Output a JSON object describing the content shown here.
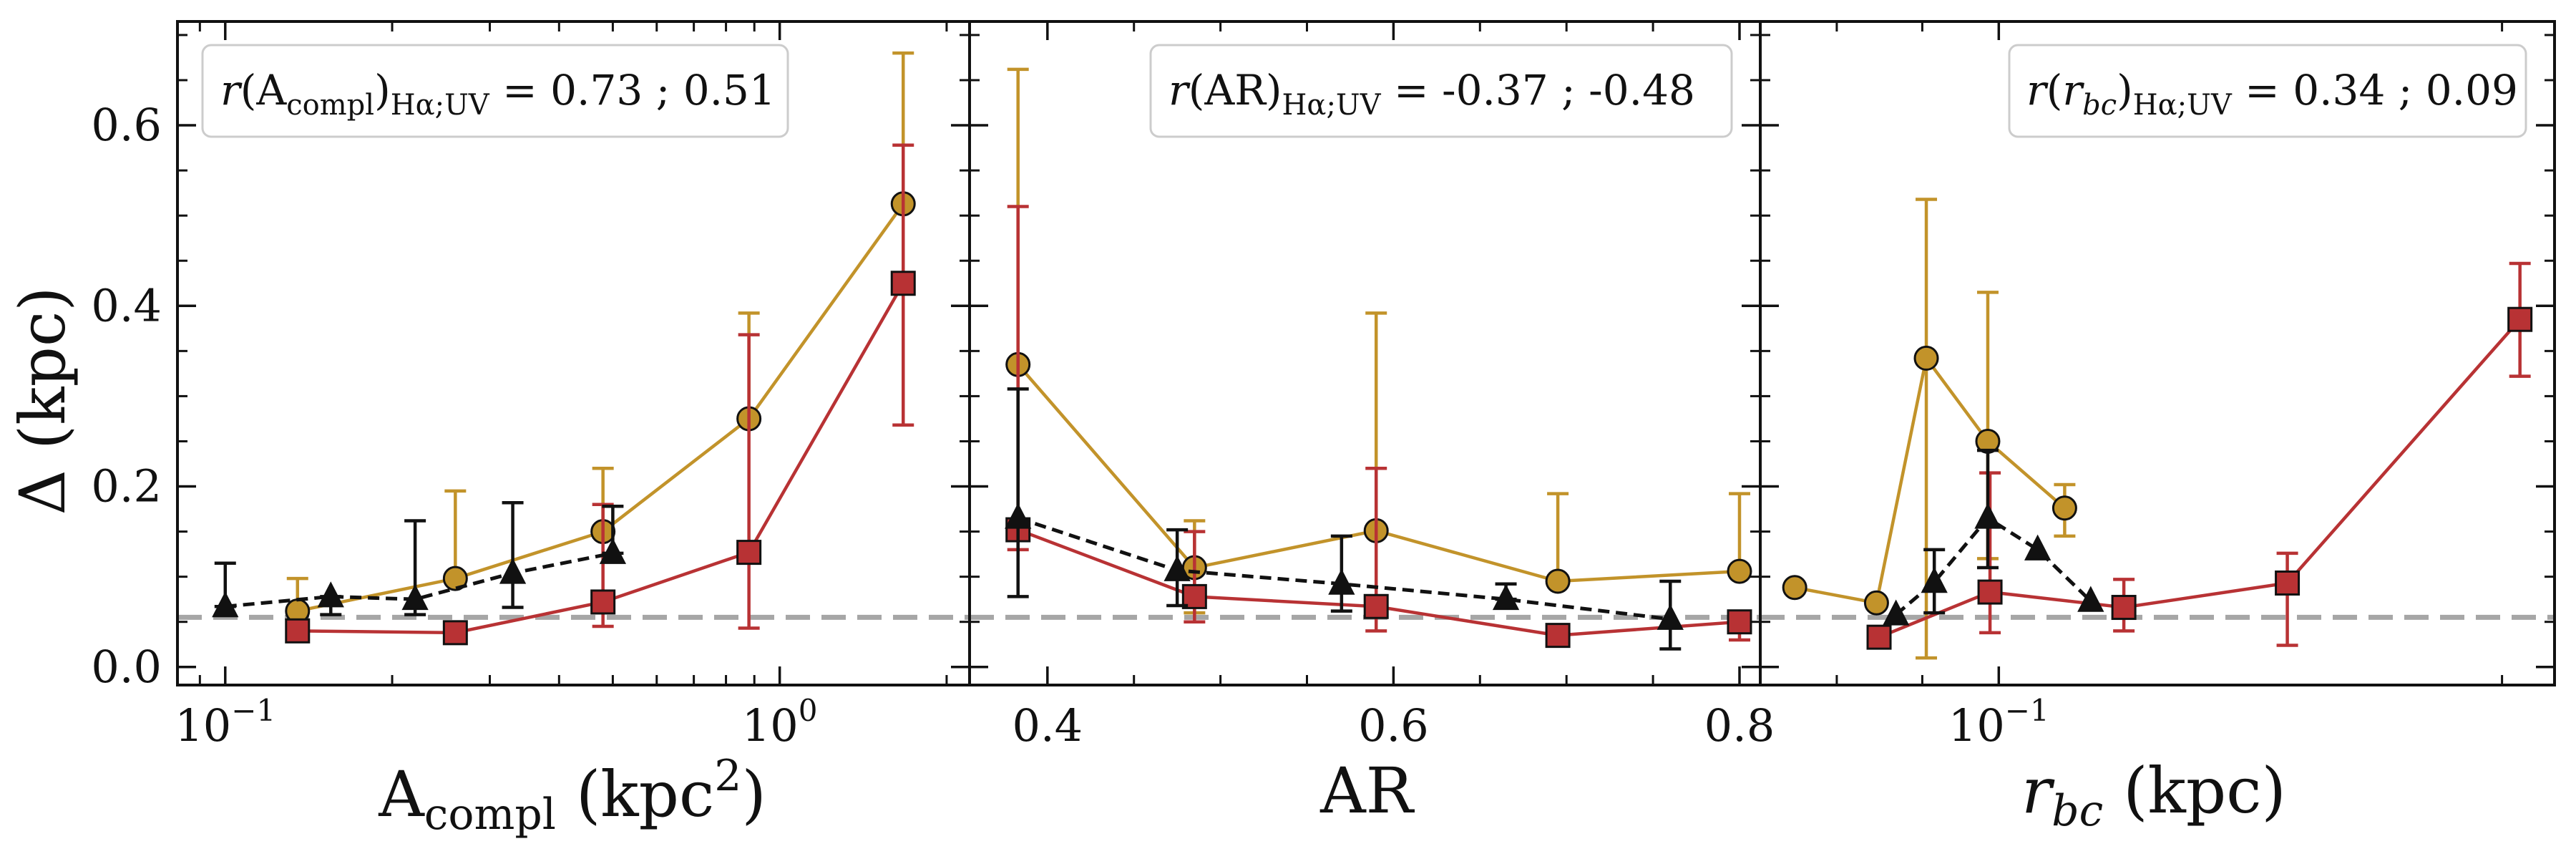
{
  "figure": {
    "ylabel": "Δ (kpc)",
    "y_ticks": [
      0.0,
      0.2,
      0.4,
      0.6
    ],
    "y_tick_labels": [
      "0.0",
      "0.2",
      "0.4",
      "0.6"
    ],
    "ylim": [
      -0.02,
      0.715
    ],
    "reference_line_y": 0.055
  },
  "colors": {
    "halpha": "#c2932a",
    "uv": "#b83234",
    "combined": "#111111",
    "reference": "#a6a6a6",
    "legend_border": "#cccccc"
  },
  "chart_data": [
    {
      "type": "line",
      "xscale": "log",
      "xlim": [
        0.082,
        2.2
      ],
      "xlabel_main": "A",
      "xlabel_sub": "compl",
      "xlabel_tail": " (kpc",
      "xlabel_sup": "2",
      "xlabel_end": ")",
      "x_ticks": [
        0.1,
        1.0
      ],
      "x_tick_labels": [
        {
          "base": "10",
          "exp": "−1"
        },
        {
          "base": "10",
          "exp": "0"
        }
      ],
      "annotation": {
        "pre": "r",
        "mid": "(A",
        "sub1": "compl",
        "close": ")",
        "sub2": "Hα;UV",
        "tail": " = 0.73 ; 0.51"
      },
      "legend_position": "top-left",
      "series": [
        {
          "name": "halpha",
          "marker": "circle",
          "style": "solid",
          "x": [
            0.135,
            0.26,
            0.48,
            0.88,
            1.67
          ],
          "y": [
            0.062,
            0.098,
            0.15,
            0.275,
            0.513
          ],
          "err_low": [
            0.062,
            0.098,
            0.15,
            0.275,
            0.513
          ],
          "err_high": [
            0.098,
            0.195,
            0.22,
            0.392,
            0.68
          ]
        },
        {
          "name": "uv",
          "marker": "square",
          "style": "solid",
          "x": [
            0.135,
            0.26,
            0.48,
            0.88,
            1.67
          ],
          "y": [
            0.04,
            0.038,
            0.072,
            0.127,
            0.425
          ],
          "err_low": [
            0.04,
            0.038,
            0.045,
            0.043,
            0.268
          ],
          "err_high": [
            0.04,
            0.038,
            0.18,
            0.368,
            0.578
          ]
        },
        {
          "name": "combined",
          "marker": "triangle",
          "style": "dashed",
          "x": [
            0.1,
            0.155,
            0.22,
            0.33,
            0.5
          ],
          "y": [
            0.067,
            0.078,
            0.075,
            0.104,
            0.126
          ],
          "err_low": [
            0.067,
            0.058,
            0.058,
            0.066,
            0.126
          ],
          "err_high": [
            0.115,
            0.078,
            0.162,
            0.182,
            0.178
          ]
        }
      ]
    },
    {
      "type": "line",
      "xscale": "linear",
      "xlim": [
        0.355,
        0.812
      ],
      "xlabel_main": "AR",
      "x_ticks": [
        0.4,
        0.6,
        0.8
      ],
      "x_tick_labels": [
        "0.4",
        "0.6",
        "0.8"
      ],
      "annotation": {
        "pre": "r",
        "mid": "(AR)",
        "sub2": "Hα;UV",
        "tail": " = -0.37 ; -0.48"
      },
      "legend_position": "top-right",
      "series": [
        {
          "name": "halpha",
          "marker": "circle",
          "style": "solid",
          "x": [
            0.383,
            0.485,
            0.59,
            0.695,
            0.8
          ],
          "y": [
            0.335,
            0.11,
            0.151,
            0.095,
            0.106
          ],
          "err_low": [
            0.15,
            0.06,
            0.151,
            0.095,
            0.106
          ],
          "err_high": [
            0.662,
            0.162,
            0.392,
            0.192,
            0.192
          ]
        },
        {
          "name": "uv",
          "marker": "square",
          "style": "solid",
          "x": [
            0.383,
            0.485,
            0.59,
            0.695,
            0.8
          ],
          "y": [
            0.152,
            0.078,
            0.067,
            0.035,
            0.05
          ],
          "err_low": [
            0.13,
            0.05,
            0.04,
            0.035,
            0.03
          ],
          "err_high": [
            0.51,
            0.15,
            0.22,
            0.035,
            0.05
          ]
        },
        {
          "name": "combined",
          "marker": "triangle",
          "style": "dashed",
          "x": [
            0.383,
            0.475,
            0.57,
            0.665,
            0.76
          ],
          "y": [
            0.165,
            0.107,
            0.092,
            0.075,
            0.053
          ],
          "err_low": [
            0.078,
            0.068,
            0.062,
            0.075,
            0.02
          ],
          "err_high": [
            0.308,
            0.152,
            0.145,
            0.092,
            0.095
          ]
        }
      ]
    },
    {
      "type": "line",
      "xscale": "log",
      "xlim": [
        0.072,
        0.215
      ],
      "xlabel_main": "r",
      "xlabel_sub": "bc",
      "xlabel_tail": " (kpc)",
      "x_ticks": [
        0.1
      ],
      "x_tick_labels": [
        {
          "base": "10",
          "exp": "−1"
        }
      ],
      "annotation": {
        "pre": "r",
        "mid": "(",
        "italic_mid": "r",
        "italic_sub": "bc",
        "close": ")",
        "sub2": "Hα;UV",
        "tail": " = 0.34 ; 0.09"
      },
      "legend_position": "top-right",
      "series": [
        {
          "name": "halpha",
          "marker": "circle",
          "style": "solid",
          "x": [
            0.0755,
            0.0845,
            0.0905,
            0.0985,
            0.1095
          ],
          "y": [
            0.088,
            0.071,
            0.342,
            0.25,
            0.176
          ],
          "err_low": [
            0.088,
            0.071,
            0.01,
            0.12,
            0.145
          ],
          "err_high": [
            0.088,
            0.071,
            0.518,
            0.415,
            0.202
          ]
        },
        {
          "name": "uv",
          "marker": "square",
          "style": "solid",
          "x": [
            0.0848,
            0.0988,
            0.1188,
            0.1488,
            0.205
          ],
          "y": [
            0.033,
            0.083,
            0.066,
            0.093,
            0.385
          ],
          "err_low": [
            0.033,
            0.038,
            0.04,
            0.024,
            0.322
          ],
          "err_high": [
            0.033,
            0.215,
            0.097,
            0.126,
            0.447
          ]
        },
        {
          "name": "combined",
          "marker": "triangle",
          "style": "dashed",
          "x": [
            0.0868,
            0.0915,
            0.0985,
            0.1055,
            0.1135
          ],
          "y": [
            0.058,
            0.094,
            0.165,
            0.13,
            0.073
          ],
          "err_low": [
            0.058,
            0.06,
            0.11,
            0.13,
            0.073
          ],
          "err_high": [
            0.058,
            0.13,
            0.24,
            0.13,
            0.073
          ]
        }
      ]
    }
  ]
}
